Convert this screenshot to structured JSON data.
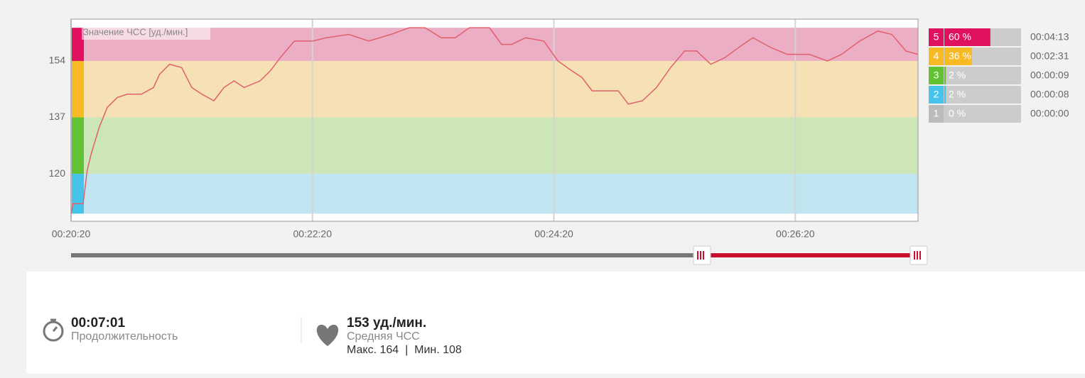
{
  "chart_data": {
    "type": "line",
    "series_label": "Значение ЧСС [уд./мин.]",
    "x": [
      1220,
      1221,
      1226,
      1228,
      1230,
      1232,
      1234,
      1238,
      1243,
      1248,
      1255,
      1261,
      1264,
      1269,
      1275,
      1280,
      1285,
      1291,
      1296,
      1301,
      1306,
      1314,
      1319,
      1324,
      1331,
      1340,
      1347,
      1358,
      1368,
      1379,
      1388,
      1396,
      1404,
      1411,
      1418,
      1428,
      1434,
      1439,
      1446,
      1455,
      1462,
      1469,
      1474,
      1479,
      1485,
      1492,
      1497,
      1504,
      1511,
      1518,
      1525,
      1531,
      1538,
      1545,
      1554,
      1559,
      1568,
      1576,
      1587,
      1596,
      1603,
      1612,
      1621,
      1628,
      1635,
      1641
    ],
    "series": [
      {
        "color": "#e0606c",
        "values": [
          108,
          111,
          111,
          121,
          126,
          130,
          134,
          140,
          143,
          144,
          144,
          146,
          150,
          153,
          152,
          146,
          144,
          142,
          146,
          148,
          146,
          148,
          151,
          155,
          160,
          160,
          161,
          162,
          160,
          162,
          164,
          164,
          161,
          161,
          164,
          164,
          159,
          159,
          161,
          160,
          154,
          151,
          149,
          145,
          145,
          145,
          141,
          142,
          146,
          152,
          157,
          157,
          153,
          155,
          159,
          161,
          158,
          156,
          156,
          154,
          156,
          160,
          163,
          162,
          157,
          156
        ]
      }
    ],
    "bands": [
      {
        "from": 154,
        "to": 164,
        "color": "#ebaec5",
        "strip_color": "#e0115f"
      },
      {
        "from": 137,
        "to": 154,
        "color": "#f5e1b3",
        "strip_color": "#f7b924"
      },
      {
        "from": 120,
        "to": 137,
        "color": "#cce6b8",
        "strip_color": "#63c231"
      },
      {
        "from": 108,
        "to": 120,
        "color": "#c1e4f1",
        "strip_color": "#45c3e8"
      }
    ],
    "xlim": [
      1220,
      1641
    ],
    "xticks": [
      {
        "value": 1220,
        "label": "00:20:20"
      },
      {
        "value": 1340,
        "label": "00:22:20"
      },
      {
        "value": 1460,
        "label": "00:24:20"
      },
      {
        "value": 1580,
        "label": "00:26:20"
      }
    ],
    "ylim": [
      105.7,
      166.6
    ],
    "yticks": [
      120,
      137,
      154
    ],
    "grid": true
  },
  "zones": [
    {
      "zone": "5",
      "percent": 60,
      "percent_label": "60 %",
      "time": "00:04:13",
      "color": "#e0115f"
    },
    {
      "zone": "4",
      "percent": 36,
      "percent_label": "36 %",
      "time": "00:02:31",
      "color": "#f7b924"
    },
    {
      "zone": "3",
      "percent": 2,
      "percent_label": "2 %",
      "time": "00:00:09",
      "color": "#63c231"
    },
    {
      "zone": "2",
      "percent": 2,
      "percent_label": "2 %",
      "time": "00:00:08",
      "color": "#45c3e8"
    },
    {
      "zone": "1",
      "percent": 0,
      "percent_label": "0 %",
      "time": "00:00:00",
      "color": "#bbbbbb"
    }
  ],
  "summary": {
    "duration": "00:07:01",
    "duration_label": "Продолжительность",
    "avg_hr": "153 уд./мин.",
    "avg_label": "Средняя ЧСС",
    "hr_range": "Макс. 164  |  Мин. 108"
  }
}
